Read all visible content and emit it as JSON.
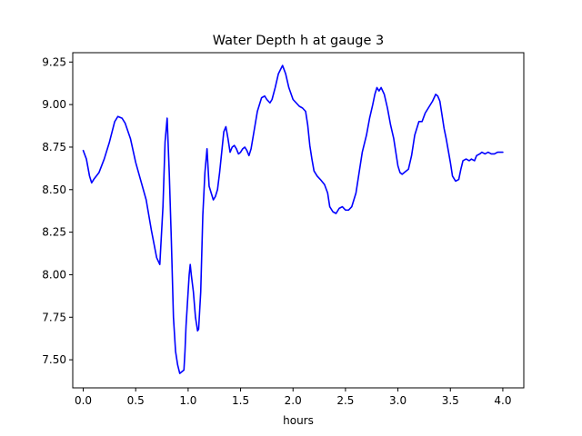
{
  "chart_data": {
    "type": "line",
    "title": "Water Depth h at gauge 3",
    "xlabel": "hours",
    "ylabel": "",
    "xlim": [
      -0.1,
      4.2
    ],
    "ylim": [
      7.335,
      9.305
    ],
    "xticks": [
      0.0,
      0.5,
      1.0,
      1.5,
      2.0,
      2.5,
      3.0,
      3.5,
      4.0
    ],
    "xtick_labels": [
      "0.0",
      "0.5",
      "1.0",
      "1.5",
      "2.0",
      "2.5",
      "3.0",
      "3.5",
      "4.0"
    ],
    "yticks": [
      7.5,
      7.75,
      8.0,
      8.25,
      8.5,
      8.75,
      9.0,
      9.25
    ],
    "ytick_labels": [
      "7.50",
      "7.75",
      "8.00",
      "8.25",
      "8.50",
      "8.75",
      "9.00",
      "9.25"
    ],
    "grid": false,
    "series": [
      {
        "name": "",
        "color": "#0000ff",
        "x": [
          0.0,
          0.03,
          0.06,
          0.08,
          0.1,
          0.15,
          0.2,
          0.25,
          0.3,
          0.33,
          0.37,
          0.4,
          0.45,
          0.5,
          0.55,
          0.6,
          0.65,
          0.7,
          0.73,
          0.76,
          0.78,
          0.8,
          0.82,
          0.84,
          0.86,
          0.88,
          0.9,
          0.92,
          0.94,
          0.96,
          0.97,
          0.98,
          0.99,
          1.0,
          1.01,
          1.02,
          1.03,
          1.05,
          1.07,
          1.09,
          1.1,
          1.12,
          1.14,
          1.16,
          1.18,
          1.2,
          1.22,
          1.24,
          1.26,
          1.28,
          1.3,
          1.32,
          1.34,
          1.36,
          1.38,
          1.4,
          1.42,
          1.44,
          1.46,
          1.48,
          1.5,
          1.52,
          1.54,
          1.56,
          1.58,
          1.6,
          1.63,
          1.66,
          1.7,
          1.73,
          1.75,
          1.78,
          1.8,
          1.83,
          1.86,
          1.9,
          1.93,
          1.96,
          2.0,
          2.03,
          2.06,
          2.09,
          2.12,
          2.14,
          2.16,
          2.18,
          2.2,
          2.23,
          2.26,
          2.3,
          2.33,
          2.35,
          2.38,
          2.41,
          2.44,
          2.47,
          2.5,
          2.53,
          2.56,
          2.6,
          2.63,
          2.66,
          2.7,
          2.73,
          2.76,
          2.78,
          2.8,
          2.82,
          2.84,
          2.87,
          2.9,
          2.93,
          2.96,
          2.98,
          3.0,
          3.02,
          3.04,
          3.06,
          3.08,
          3.1,
          3.13,
          3.16,
          3.2,
          3.23,
          3.26,
          3.3,
          3.33,
          3.36,
          3.38,
          3.4,
          3.42,
          3.44,
          3.46,
          3.48,
          3.5,
          3.52,
          3.55,
          3.58,
          3.6,
          3.62,
          3.65,
          3.68,
          3.7,
          3.73,
          3.75,
          3.78,
          3.8,
          3.83,
          3.86,
          3.89,
          3.92,
          3.95,
          3.98,
          4.0
        ],
        "y": [
          8.73,
          8.68,
          8.58,
          8.54,
          8.56,
          8.6,
          8.68,
          8.78,
          8.9,
          8.93,
          8.92,
          8.89,
          8.8,
          8.66,
          8.55,
          8.44,
          8.26,
          8.1,
          8.06,
          8.4,
          8.78,
          8.92,
          8.6,
          8.2,
          7.75,
          7.55,
          7.47,
          7.42,
          7.43,
          7.44,
          7.55,
          7.7,
          7.8,
          7.9,
          8.0,
          8.06,
          8.0,
          7.9,
          7.75,
          7.67,
          7.68,
          7.9,
          8.35,
          8.6,
          8.74,
          8.52,
          8.48,
          8.44,
          8.46,
          8.5,
          8.6,
          8.72,
          8.84,
          8.87,
          8.8,
          8.72,
          8.75,
          8.76,
          8.74,
          8.71,
          8.72,
          8.74,
          8.75,
          8.73,
          8.7,
          8.74,
          8.85,
          8.96,
          9.04,
          9.05,
          9.03,
          9.01,
          9.03,
          9.1,
          9.18,
          9.23,
          9.18,
          9.1,
          9.03,
          9.01,
          8.99,
          8.98,
          8.96,
          8.88,
          8.76,
          8.68,
          8.61,
          8.58,
          8.56,
          8.53,
          8.48,
          8.4,
          8.37,
          8.36,
          8.39,
          8.4,
          8.38,
          8.38,
          8.4,
          8.48,
          8.6,
          8.72,
          8.82,
          8.92,
          9.0,
          9.06,
          9.1,
          9.08,
          9.1,
          9.06,
          8.98,
          8.88,
          8.8,
          8.72,
          8.64,
          8.6,
          8.59,
          8.6,
          8.61,
          8.62,
          8.7,
          8.82,
          8.9,
          8.9,
          8.95,
          8.99,
          9.02,
          9.06,
          9.05,
          9.02,
          8.94,
          8.86,
          8.8,
          8.73,
          8.66,
          8.58,
          8.55,
          8.56,
          8.62,
          8.67,
          8.68,
          8.67,
          8.68,
          8.67,
          8.7,
          8.71,
          8.72,
          8.71,
          8.72,
          8.71,
          8.71,
          8.72,
          8.72,
          8.72
        ]
      }
    ]
  }
}
